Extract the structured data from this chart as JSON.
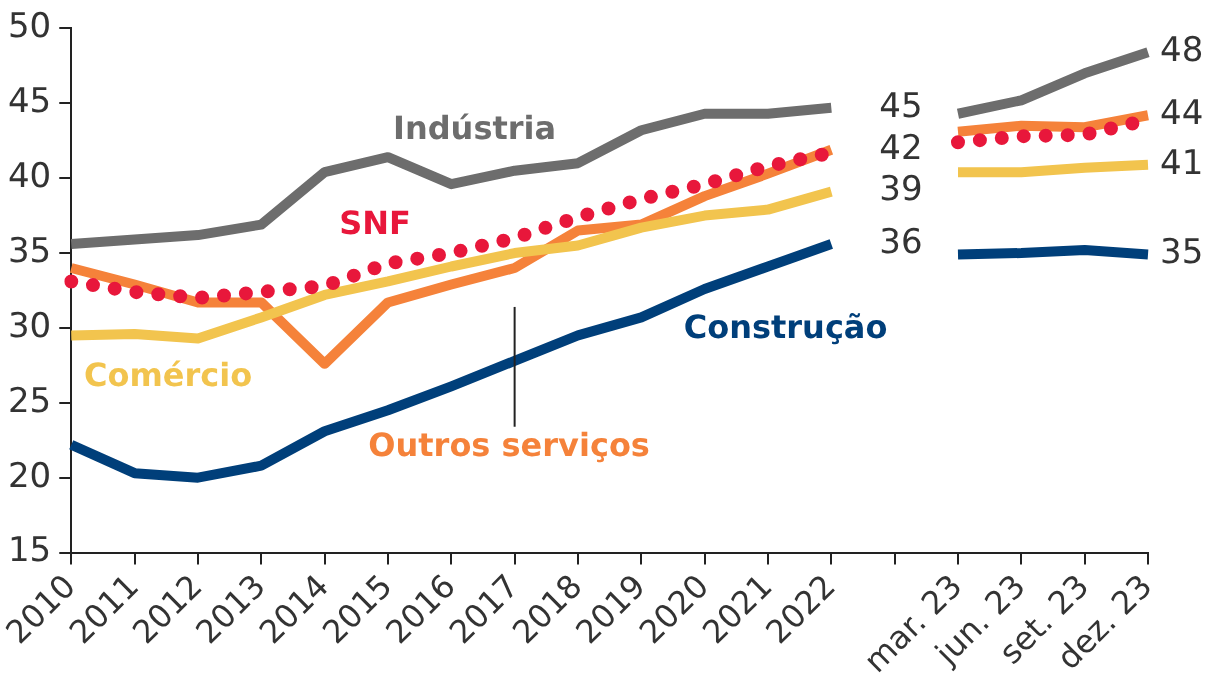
{
  "chart_data": {
    "type": "line",
    "categories": [
      "2010",
      "2011",
      "2012",
      "2013",
      "2014",
      "2015",
      "2016",
      "2017",
      "2018",
      "2019",
      "2020",
      "2021",
      "2022",
      null,
      "mar. 23",
      "jun. 23",
      "set. 23",
      "dez. 23"
    ],
    "ylim": [
      15,
      50
    ],
    "yticks": [
      15,
      20,
      25,
      30,
      35,
      40,
      45,
      50
    ],
    "grid": false,
    "legend": false,
    "marker": "none",
    "series": [
      {
        "name": "Indústria",
        "color": "#6d6d6d",
        "line_style": "solid",
        "values": [
          35.6,
          35.9,
          36.2,
          36.9,
          40.4,
          41.4,
          39.6,
          40.5,
          41.0,
          43.2,
          44.3,
          44.3,
          44.7,
          null,
          44.3,
          45.2,
          47.0,
          48.4
        ],
        "value_labels": [
          null,
          null,
          null,
          null,
          null,
          null,
          null,
          null,
          null,
          null,
          null,
          null,
          "45",
          null,
          null,
          null,
          null,
          "48"
        ]
      },
      {
        "name": "SNF",
        "color": "#e8173b",
        "line_style": "dotted",
        "values": [
          33.1,
          32.4,
          32.0,
          32.4,
          32.8,
          34.3,
          35.0,
          36.0,
          37.4,
          38.6,
          39.6,
          40.8,
          41.7,
          null,
          42.4,
          42.8,
          42.9,
          43.9
        ]
      },
      {
        "name": "Comércio",
        "color": "#f2c44e",
        "line_style": "solid",
        "values": [
          29.5,
          29.6,
          29.3,
          30.7,
          32.2,
          33.1,
          34.1,
          35.0,
          35.5,
          36.7,
          37.5,
          37.9,
          39.1,
          null,
          40.4,
          40.4,
          40.7,
          40.9
        ],
        "value_labels": [
          null,
          null,
          null,
          null,
          null,
          null,
          null,
          null,
          null,
          null,
          null,
          null,
          "39",
          null,
          null,
          null,
          null,
          "41"
        ]
      },
      {
        "name": "Construção",
        "color": "#003f7a",
        "line_style": "solid",
        "values": [
          22.2,
          20.3,
          20.0,
          20.8,
          23.1,
          24.5,
          26.1,
          27.8,
          29.5,
          30.7,
          32.6,
          34.1,
          35.6,
          null,
          34.9,
          35.0,
          35.2,
          34.9
        ],
        "value_labels": [
          null,
          null,
          null,
          null,
          null,
          null,
          null,
          null,
          null,
          null,
          null,
          null,
          "36",
          null,
          null,
          null,
          null,
          "35"
        ]
      },
      {
        "name": "Outros serviços",
        "color": "#f5823a",
        "line_style": "solid",
        "values": [
          34.0,
          32.9,
          31.7,
          31.7,
          27.6,
          31.7,
          32.9,
          34.0,
          36.5,
          36.9,
          38.8,
          40.3,
          41.9,
          null,
          43.1,
          43.5,
          43.4,
          44.2
        ],
        "value_labels": [
          null,
          null,
          null,
          null,
          null,
          null,
          null,
          null,
          null,
          null,
          null,
          null,
          "42",
          null,
          null,
          null,
          null,
          "44"
        ]
      }
    ]
  }
}
